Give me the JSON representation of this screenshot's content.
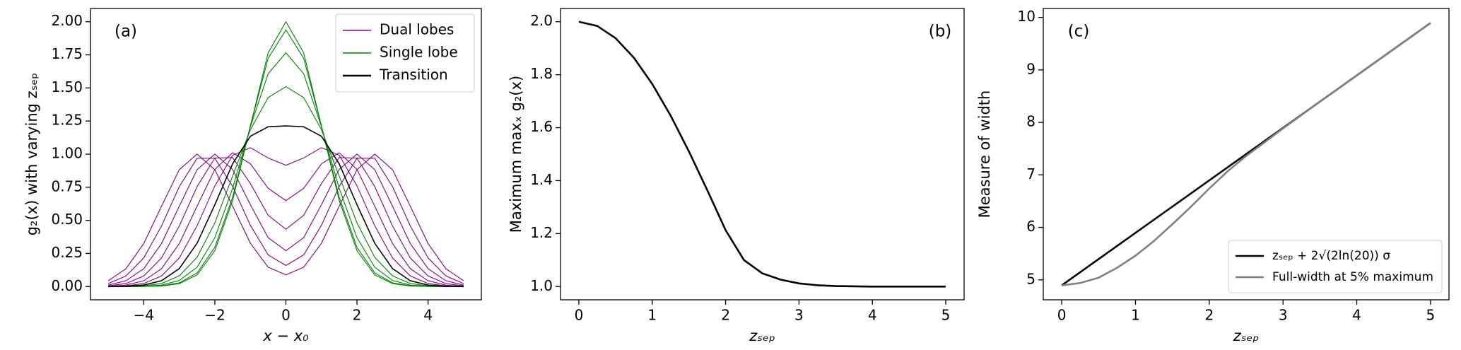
{
  "chart_data": [
    {
      "type": "line",
      "annotation": "(a)",
      "xlabel": "x − x₀",
      "ylabel": "g₂(x) with varying zₛₑₚ",
      "x": [
        -5,
        -4.5,
        -4,
        -3.5,
        -3,
        -2.5,
        -2,
        -1.5,
        -1,
        -0.5,
        0,
        0.5,
        1,
        1.5,
        2,
        2.5,
        3,
        3.5,
        4,
        4.5,
        5
      ],
      "series": [
        {
          "name": "Dual lobes",
          "color": "#800080",
          "curves": [
            [
              0.001,
              0.005,
              0.023,
              0.08,
              0.216,
              0.459,
              0.76,
              0.992,
              1.049,
              0.971,
              0.916,
              0.971,
              1.049,
              0.992,
              0.76,
              0.459,
              0.216,
              0.08,
              0.023,
              0.005,
              0.001
            ],
            [
              0.002,
              0.011,
              0.044,
              0.135,
              0.325,
              0.607,
              0.885,
              1.011,
              0.927,
              0.742,
              0.649,
              0.742,
              0.927,
              1.011,
              0.885,
              0.607,
              0.325,
              0.135,
              0.044,
              0.011,
              0.002
            ],
            [
              0.005,
              0.023,
              0.08,
              0.216,
              0.458,
              0.755,
              0.97,
              0.974,
              0.778,
              0.538,
              0.433,
              0.538,
              0.778,
              0.974,
              0.97,
              0.755,
              0.458,
              0.216,
              0.08,
              0.023,
              0.005
            ],
            [
              0.011,
              0.044,
              0.135,
              0.325,
              0.607,
              0.883,
              1.0,
              0.885,
              0.618,
              0.369,
              0.271,
              0.369,
              0.618,
              0.885,
              1.0,
              0.883,
              0.607,
              0.325,
              0.135,
              0.044,
              0.011
            ],
            [
              0.023,
              0.08,
              0.216,
              0.458,
              0.755,
              0.969,
              0.969,
              0.756,
              0.463,
              0.239,
              0.159,
              0.239,
              0.463,
              0.756,
              0.969,
              0.969,
              0.755,
              0.458,
              0.216,
              0.08,
              0.023
            ],
            [
              0.044,
              0.135,
              0.325,
              0.607,
              0.883,
              1,
              0.883,
              0.607,
              0.327,
              0.146,
              0.088,
              0.146,
              0.327,
              0.607,
              0.883,
              1,
              0.883,
              0.607,
              0.325,
              0.135,
              0.044
            ]
          ]
        },
        {
          "name": "Single lobe",
          "color": "#008000",
          "curves": [
            [
              0,
              0,
              0.001,
              0.004,
              0.022,
              0.088,
              0.271,
              0.649,
              1.213,
              1.765,
              2,
              1.765,
              1.213,
              0.649,
              0.271,
              0.088,
              0.022,
              0.004,
              0.001,
              0,
              0
            ],
            [
              0,
              0,
              0.001,
              0.006,
              0.028,
              0.103,
              0.296,
              0.674,
              1.213,
              1.724,
              1.938,
              1.724,
              1.213,
              0.674,
              0.296,
              0.103,
              0.028,
              0.006,
              0.001,
              0,
              0
            ],
            [
              0,
              0,
              0.002,
              0.011,
              0.046,
              0.146,
              0.369,
              0.742,
              1.207,
              1.607,
              1.765,
              1.607,
              1.207,
              0.742,
              0.369,
              0.146,
              0.046,
              0.011,
              0.002,
              0,
              0
            ],
            [
              0,
              0.001,
              0.005,
              0.023,
              0.081,
              0.221,
              0.481,
              0.835,
              1.185,
              1.427,
              1.51,
              1.427,
              1.185,
              0.835,
              0.481,
              0.221,
              0.081,
              0.023,
              0.005,
              0.001,
              0
            ]
          ]
        },
        {
          "name": "Transition",
          "color": "#000000",
          "curves": [
            [
              0,
              0.002,
              0.011,
              0.044,
              0.136,
              0.327,
              0.618,
              0.927,
              1.135,
              1.207,
              1.213,
              1.207,
              1.135,
              0.927,
              0.618,
              0.327,
              0.136,
              0.044,
              0.011,
              0.002,
              0
            ]
          ]
        }
      ],
      "xlim": [
        -5.5,
        5.5
      ],
      "ylim": [
        -0.1,
        2.1
      ],
      "xticks": [
        {
          "value": -4,
          "label": "−4"
        },
        {
          "value": -2,
          "label": "−2"
        },
        0,
        2,
        4
      ],
      "yticks": [
        {
          "value": 0,
          "label": "0.00"
        },
        0.25,
        {
          "value": 0.5,
          "label": "0.50"
        },
        0.75,
        {
          "value": 1,
          "label": "1.00"
        },
        1.25,
        {
          "value": 1.5,
          "label": "1.50"
        },
        1.75,
        {
          "value": 2,
          "label": "2.00"
        }
      ],
      "legend": "upper right"
    },
    {
      "type": "line",
      "annotation": "(b)",
      "xlabel": "zₛₑₚ",
      "ylabel": "Maximum maxₓ g₂(x)",
      "x": [
        0,
        0.25,
        0.5,
        0.75,
        1,
        1.25,
        1.5,
        1.75,
        2,
        2.25,
        2.5,
        2.75,
        3,
        3.25,
        3.5,
        3.75,
        4,
        4.25,
        4.5,
        4.75,
        5
      ],
      "series": [
        {
          "color": "#000000",
          "values": [
            2,
            1.984,
            1.938,
            1.864,
            1.765,
            1.646,
            1.51,
            1.364,
            1.213,
            1.1,
            1.05,
            1.026,
            1.012,
            1.005,
            1.002,
            1.001,
            1,
            1,
            1,
            1,
            1
          ]
        }
      ],
      "xlim": [
        -0.25,
        5.25
      ],
      "ylim": [
        0.95,
        2.05
      ],
      "xticks": [
        0,
        1,
        2,
        3,
        4,
        5
      ],
      "yticks": [
        {
          "value": 1,
          "label": "1.0"
        },
        1.2,
        1.4,
        1.6,
        1.8,
        {
          "value": 2,
          "label": "2.0"
        }
      ]
    },
    {
      "type": "line",
      "annotation": "(c)",
      "xlabel": "zₛₑₚ",
      "ylabel": "Measure of width",
      "series": [
        {
          "name": "zₛₑₚ + 2√(2ln(20)) σ",
          "color": "#000000",
          "x": [
            0,
            5
          ],
          "values": [
            4.895,
            9.895
          ]
        },
        {
          "name": "Full-width at 5% maximum",
          "color": "#808080",
          "x": [
            0,
            0.25,
            0.5,
            0.75,
            1,
            1.25,
            1.5,
            1.75,
            2,
            2.25,
            2.5,
            2.75,
            3,
            3.5,
            4,
            4.5,
            5
          ],
          "values": [
            4.895,
            4.94,
            5.04,
            5.23,
            5.46,
            5.74,
            6.06,
            6.39,
            6.74,
            7.07,
            7.36,
            7.62,
            7.886,
            8.394,
            8.895,
            9.395,
            9.895
          ]
        }
      ],
      "xlim": [
        -0.25,
        5.25
      ],
      "ylim": [
        4.62,
        10.17
      ],
      "xticks": [
        0,
        1,
        2,
        3,
        4,
        5
      ],
      "yticks": [
        5,
        6,
        7,
        8,
        9,
        10
      ],
      "legend": "lower right"
    }
  ]
}
